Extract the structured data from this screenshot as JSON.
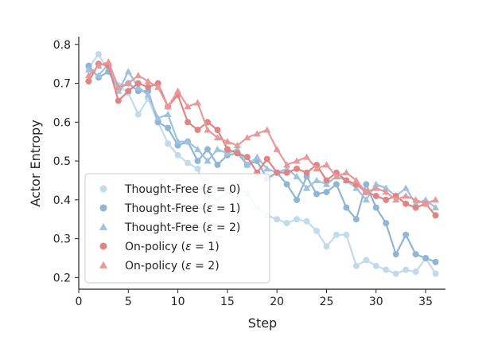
{
  "chart_data": {
    "type": "line",
    "title": "",
    "xlabel": "Step",
    "ylabel": "Actor Entropy",
    "xlim": [
      0,
      37
    ],
    "ylim": [
      0.17,
      0.82
    ],
    "xticks": [
      0,
      5,
      10,
      15,
      20,
      25,
      30,
      35
    ],
    "yticks": [
      0.2,
      0.3,
      0.4,
      0.5,
      0.6,
      0.7,
      0.8
    ],
    "legend_position": "lower-left",
    "series": [
      {
        "name": "Thought-Free (ε = 0)",
        "label_prefix": "Thought-Free (",
        "label_eps": "ε",
        "label_suffix": " = 0)",
        "color": "#c2dbea",
        "marker": "circle",
        "x": [
          1,
          2,
          3,
          4,
          5,
          6,
          7,
          8,
          9,
          10,
          11,
          12,
          13,
          14,
          15,
          16,
          17,
          18,
          19,
          20,
          21,
          22,
          23,
          24,
          25,
          26,
          27,
          28,
          29,
          30,
          31,
          32,
          33,
          34,
          35,
          36
        ],
        "y": [
          0.74,
          0.775,
          0.73,
          0.695,
          0.675,
          0.62,
          0.66,
          0.6,
          0.545,
          0.515,
          0.495,
          0.48,
          0.41,
          0.4,
          0.42,
          0.43,
          0.415,
          0.38,
          0.36,
          0.35,
          0.34,
          0.35,
          0.345,
          0.32,
          0.28,
          0.31,
          0.31,
          0.23,
          0.245,
          0.23,
          0.22,
          0.21,
          0.22,
          0.215,
          0.25,
          0.21
        ]
      },
      {
        "name": "Thought-Free (ε = 1)",
        "label_prefix": "Thought-Free (",
        "label_eps": "ε",
        "label_suffix": " = 1)",
        "color": "#8fb6d4",
        "marker": "circle",
        "x": [
          1,
          2,
          3,
          4,
          5,
          6,
          7,
          8,
          9,
          10,
          11,
          12,
          13,
          14,
          15,
          16,
          17,
          18,
          19,
          20,
          21,
          22,
          23,
          24,
          25,
          26,
          27,
          28,
          29,
          30,
          31,
          32,
          33,
          34,
          35,
          36
        ],
        "y": [
          0.745,
          0.715,
          0.73,
          0.685,
          0.7,
          0.68,
          0.68,
          0.6,
          0.585,
          0.54,
          0.55,
          0.5,
          0.53,
          0.49,
          0.515,
          0.52,
          0.49,
          0.5,
          0.455,
          0.47,
          0.44,
          0.4,
          0.46,
          0.415,
          0.42,
          0.44,
          0.38,
          0.35,
          0.44,
          0.38,
          0.34,
          0.26,
          0.31,
          0.26,
          0.25,
          0.24
        ]
      },
      {
        "name": "Thought-Free (ε = 2)",
        "label_prefix": "Thought-Free (",
        "label_eps": "ε",
        "label_suffix": " = 2)",
        "color": "#9fc2dd",
        "marker": "triangle",
        "x": [
          1,
          2,
          3,
          4,
          5,
          6,
          7,
          8,
          9,
          10,
          11,
          12,
          13,
          14,
          15,
          16,
          17,
          18,
          19,
          20,
          21,
          22,
          23,
          24,
          25,
          26,
          27,
          28,
          29,
          30,
          31,
          32,
          33,
          34,
          35,
          36
        ],
        "y": [
          0.735,
          0.72,
          0.75,
          0.68,
          0.73,
          0.69,
          0.67,
          0.61,
          0.62,
          0.55,
          0.55,
          0.53,
          0.5,
          0.53,
          0.52,
          0.53,
          0.49,
          0.51,
          0.48,
          0.47,
          0.48,
          0.46,
          0.43,
          0.45,
          0.44,
          0.46,
          0.45,
          0.43,
          0.4,
          0.44,
          0.43,
          0.41,
          0.43,
          0.39,
          0.4,
          0.38
        ]
      },
      {
        "name": "On-policy (ε = 1)",
        "label_prefix": "On-policy (",
        "label_eps": "ε",
        "label_suffix": " = 1)",
        "color": "#e08585",
        "marker": "circle",
        "x": [
          1,
          2,
          3,
          4,
          5,
          6,
          7,
          8,
          9,
          10,
          11,
          12,
          13,
          14,
          15,
          16,
          17,
          18,
          19,
          20,
          21,
          22,
          23,
          24,
          25,
          26,
          27,
          28,
          29,
          30,
          31,
          32,
          33,
          34,
          35,
          36
        ],
        "y": [
          0.705,
          0.75,
          0.745,
          0.655,
          0.68,
          0.7,
          0.69,
          0.7,
          0.64,
          0.67,
          0.6,
          0.58,
          0.6,
          0.58,
          0.53,
          0.52,
          0.51,
          0.47,
          0.505,
          0.47,
          0.47,
          0.48,
          0.47,
          0.49,
          0.45,
          0.47,
          0.45,
          0.44,
          0.42,
          0.41,
          0.4,
          0.41,
          0.39,
          0.38,
          0.39,
          0.36
        ]
      },
      {
        "name": "On-policy (ε = 2)",
        "label_prefix": "On-policy (",
        "label_eps": "ε",
        "label_suffix": " = 2)",
        "color": "#e89a9a",
        "marker": "triangle",
        "x": [
          1,
          2,
          3,
          4,
          5,
          6,
          7,
          8,
          9,
          10,
          11,
          12,
          13,
          14,
          15,
          16,
          17,
          18,
          19,
          20,
          21,
          22,
          23,
          24,
          25,
          26,
          27,
          28,
          29,
          30,
          31,
          32,
          33,
          34,
          35,
          36
        ],
        "y": [
          0.72,
          0.745,
          0.755,
          0.69,
          0.7,
          0.72,
          0.705,
          0.69,
          0.64,
          0.68,
          0.64,
          0.65,
          0.58,
          0.56,
          0.55,
          0.54,
          0.56,
          0.57,
          0.58,
          0.53,
          0.49,
          0.5,
          0.51,
          0.48,
          0.49,
          0.46,
          0.47,
          0.45,
          0.42,
          0.43,
          0.42,
          0.4,
          0.41,
          0.4,
          0.39,
          0.4
        ]
      }
    ]
  }
}
